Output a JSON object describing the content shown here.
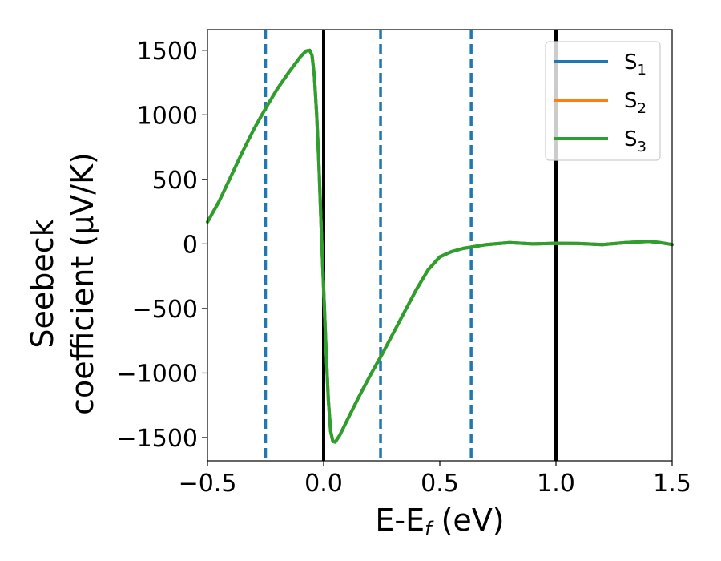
{
  "chart_data": {
    "type": "line",
    "xlabel": {
      "main": "E-E",
      "sub": "f",
      "suffix": " (eV)"
    },
    "ylabel": {
      "line1": "Seebeck",
      "line2": "coefficient  (μV/K)"
    },
    "xlim": [
      -0.5,
      1.5
    ],
    "ylim": [
      -1680,
      1660
    ],
    "xticks": [
      -0.5,
      0.0,
      0.5,
      1.0,
      1.5
    ],
    "xtick_labels": [
      "−0.5",
      "0.0",
      "0.5",
      "1.0",
      "1.5"
    ],
    "yticks": [
      -1500,
      -1000,
      -500,
      0,
      500,
      1000,
      1500
    ],
    "ytick_labels": [
      "−1500",
      "−1000",
      "−500",
      "0",
      "500",
      "1000",
      "1500"
    ],
    "grid": false,
    "legend": {
      "placement": "top-right"
    },
    "vlines_solid": [
      0.0,
      1.0
    ],
    "vlines_dashed": [
      -0.25,
      0.245,
      0.635
    ],
    "series": [
      {
        "name": "S",
        "sub": "1",
        "color": "#1f77b4",
        "x": [
          -0.5,
          -0.45,
          -0.4,
          -0.35,
          -0.3,
          -0.25,
          -0.2,
          -0.15,
          -0.1,
          -0.075,
          -0.06,
          -0.05,
          -0.04,
          -0.03,
          -0.02,
          -0.01,
          0.0,
          0.01,
          0.02,
          0.03,
          0.04,
          0.05,
          0.07,
          0.1,
          0.15,
          0.2,
          0.25,
          0.3,
          0.35,
          0.4,
          0.45,
          0.5,
          0.55,
          0.6,
          0.65,
          0.7,
          0.8,
          0.9,
          1.0,
          1.1,
          1.2,
          1.3,
          1.4,
          1.45,
          1.5
        ],
        "y": [
          170,
          330,
          520,
          710,
          890,
          1050,
          1200,
          1330,
          1450,
          1495,
          1500,
          1460,
          1300,
          1000,
          600,
          100,
          -350,
          -800,
          -1200,
          -1450,
          -1530,
          -1535,
          -1480,
          -1370,
          -1190,
          -1020,
          -860,
          -690,
          -520,
          -350,
          -200,
          -100,
          -60,
          -35,
          -20,
          -5,
          10,
          0,
          5,
          3,
          -5,
          10,
          20,
          10,
          -5
        ]
      },
      {
        "name": "S",
        "sub": "2",
        "color": "#ff7f0e",
        "x": [
          -0.5,
          -0.45,
          -0.4,
          -0.35,
          -0.3,
          -0.25,
          -0.2,
          -0.15,
          -0.1,
          -0.075,
          -0.06,
          -0.05,
          -0.04,
          -0.03,
          -0.02,
          -0.01,
          0.0,
          0.01,
          0.02,
          0.03,
          0.04,
          0.05,
          0.07,
          0.1,
          0.15,
          0.2,
          0.25,
          0.3,
          0.35,
          0.4,
          0.45,
          0.5,
          0.55,
          0.6,
          0.65,
          0.7,
          0.8,
          0.9,
          1.0,
          1.1,
          1.2,
          1.3,
          1.4,
          1.45,
          1.5
        ],
        "y": [
          170,
          330,
          520,
          710,
          890,
          1050,
          1200,
          1330,
          1450,
          1495,
          1500,
          1460,
          1300,
          1000,
          600,
          100,
          -350,
          -800,
          -1200,
          -1450,
          -1530,
          -1535,
          -1480,
          -1370,
          -1190,
          -1020,
          -860,
          -690,
          -520,
          -350,
          -200,
          -100,
          -60,
          -35,
          -20,
          -5,
          10,
          0,
          5,
          3,
          -5,
          10,
          20,
          10,
          -5
        ]
      },
      {
        "name": "S",
        "sub": "3",
        "color": "#2ca02c",
        "x": [
          -0.5,
          -0.45,
          -0.4,
          -0.35,
          -0.3,
          -0.25,
          -0.2,
          -0.15,
          -0.1,
          -0.075,
          -0.06,
          -0.05,
          -0.04,
          -0.03,
          -0.02,
          -0.01,
          0.0,
          0.01,
          0.02,
          0.03,
          0.04,
          0.05,
          0.07,
          0.1,
          0.15,
          0.2,
          0.25,
          0.3,
          0.35,
          0.4,
          0.45,
          0.5,
          0.55,
          0.6,
          0.65,
          0.7,
          0.8,
          0.9,
          1.0,
          1.1,
          1.2,
          1.3,
          1.4,
          1.45,
          1.5
        ],
        "y": [
          170,
          330,
          520,
          710,
          890,
          1050,
          1200,
          1330,
          1450,
          1495,
          1500,
          1460,
          1300,
          1000,
          600,
          100,
          -350,
          -800,
          -1200,
          -1450,
          -1530,
          -1535,
          -1480,
          -1370,
          -1190,
          -1020,
          -860,
          -690,
          -520,
          -350,
          -200,
          -100,
          -60,
          -35,
          -20,
          -5,
          10,
          0,
          5,
          3,
          -5,
          10,
          20,
          10,
          -5
        ]
      }
    ]
  }
}
